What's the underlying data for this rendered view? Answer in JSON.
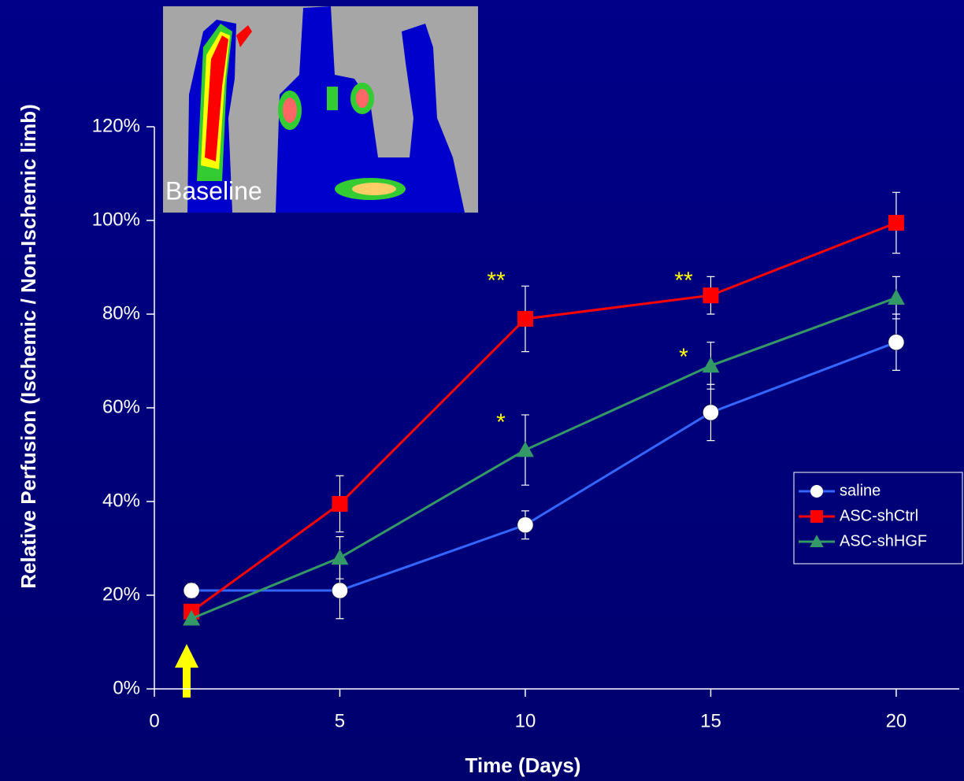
{
  "chart_data": {
    "type": "line",
    "y_axis_label": "Relative Perfusion (Ischemic / Non-Ischemic limb)",
    "x_axis_label": "Time (Days)",
    "x": [
      1,
      5,
      10,
      15,
      20
    ],
    "series": [
      {
        "name": "saline",
        "color": "#3366ff",
        "marker": "circle",
        "marker_color": "#ffffff",
        "values": [
          21,
          21,
          35,
          59,
          74
        ],
        "errors": [
          1.5,
          6,
          3,
          6,
          6
        ]
      },
      {
        "name": "ASC-shCtrl",
        "color": "#ff0000",
        "marker": "square",
        "marker_color": "#ff0000",
        "values": [
          16.5,
          39.5,
          79,
          84,
          99.5
        ],
        "errors": [
          1.5,
          6,
          7,
          4,
          6.5
        ]
      },
      {
        "name": "ASC-shHGF",
        "color": "#339966",
        "marker": "triangle",
        "marker_color": "#339966",
        "values": [
          15,
          28,
          51,
          69,
          83.5
        ],
        "errors": [
          1,
          4.5,
          7.5,
          5,
          4.5
        ]
      }
    ],
    "xlim": [
      0,
      21.7
    ],
    "ylim": [
      0,
      120
    ],
    "xticks": [
      0,
      5,
      10,
      15,
      20
    ],
    "yticks": [
      {
        "value": 0,
        "label": "0%"
      },
      {
        "value": 20,
        "label": "20%"
      },
      {
        "value": 40,
        "label": "40%"
      },
      {
        "value": 60,
        "label": "60%"
      },
      {
        "value": 80,
        "label": "80%"
      },
      {
        "value": 100,
        "label": "100%"
      },
      {
        "value": 120,
        "label": "120%"
      }
    ],
    "annotations": [
      "**",
      "**",
      "*",
      "*"
    ],
    "inset_label": "Baseline",
    "legend": "right"
  }
}
